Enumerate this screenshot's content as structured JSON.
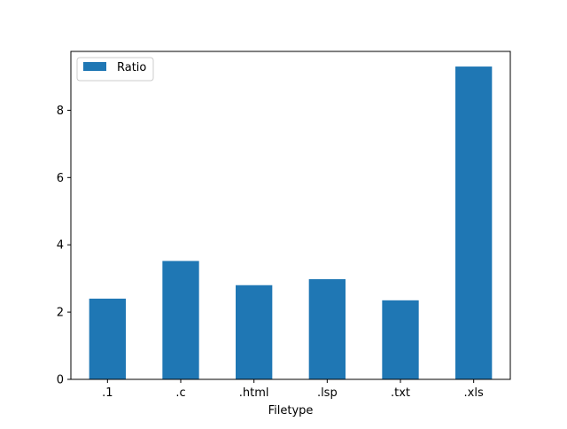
{
  "chart_data": {
    "type": "bar",
    "title": "",
    "xlabel": "Filetype",
    "ylabel": "",
    "categories": [
      ".1",
      ".c",
      ".html",
      ".lsp",
      ".txt",
      ".xls"
    ],
    "series": [
      {
        "name": "Ratio",
        "color": "#1f77b4",
        "values": [
          2.4,
          3.52,
          2.8,
          2.98,
          2.35,
          9.3
        ]
      }
    ],
    "ylim": [
      0,
      9.75
    ],
    "yticks": [
      0,
      2,
      4,
      6,
      8
    ],
    "ytick_labels": [
      "0",
      "2",
      "4",
      "6",
      "8"
    ],
    "grid": false,
    "legend": {
      "position": "top-left",
      "entries": [
        "Ratio"
      ]
    }
  }
}
